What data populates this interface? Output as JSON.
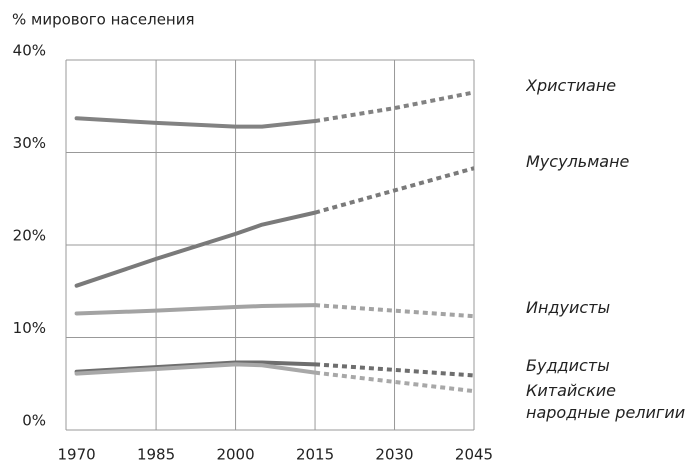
{
  "chart_data": {
    "type": "line",
    "title": "% мирового населения",
    "x": [
      1970,
      1985,
      2000,
      2005,
      2015,
      2030,
      2045
    ],
    "projection_start": 2015,
    "series": [
      {
        "name": "Христиане",
        "color": "#828282",
        "values": [
          33.7,
          33.2,
          32.8,
          32.8,
          33.4,
          34.8,
          36.5
        ]
      },
      {
        "name": "Мусульмане",
        "color": "#7a7a7a",
        "values": [
          15.6,
          18.5,
          21.2,
          22.2,
          23.5,
          25.9,
          28.3
        ]
      },
      {
        "name": "Индуисты",
        "color": "#a3a3a3",
        "values": [
          12.6,
          12.9,
          13.3,
          13.4,
          13.5,
          12.9,
          12.3
        ]
      },
      {
        "name": "Буддисты",
        "color": "#6e6e6e",
        "values": [
          6.3,
          6.8,
          7.3,
          7.3,
          7.1,
          6.5,
          5.9
        ]
      },
      {
        "name": "Китайские народные религии",
        "color": "#a8a8a8",
        "values": [
          6.1,
          6.6,
          7.1,
          7.0,
          6.2,
          5.2,
          4.2
        ]
      }
    ],
    "xlim": [
      1968,
      2045
    ],
    "xticks": [
      1970,
      1985,
      2000,
      2015,
      2030,
      2045
    ],
    "ylim": [
      0,
      40
    ],
    "yticks": [
      {
        "value": 0,
        "label": "0%"
      },
      {
        "value": 10,
        "label": "10%"
      },
      {
        "value": 20,
        "label": "20%"
      },
      {
        "value": 30,
        "label": "30%"
      },
      {
        "value": 40,
        "label": "40%"
      }
    ],
    "grid": true
  }
}
